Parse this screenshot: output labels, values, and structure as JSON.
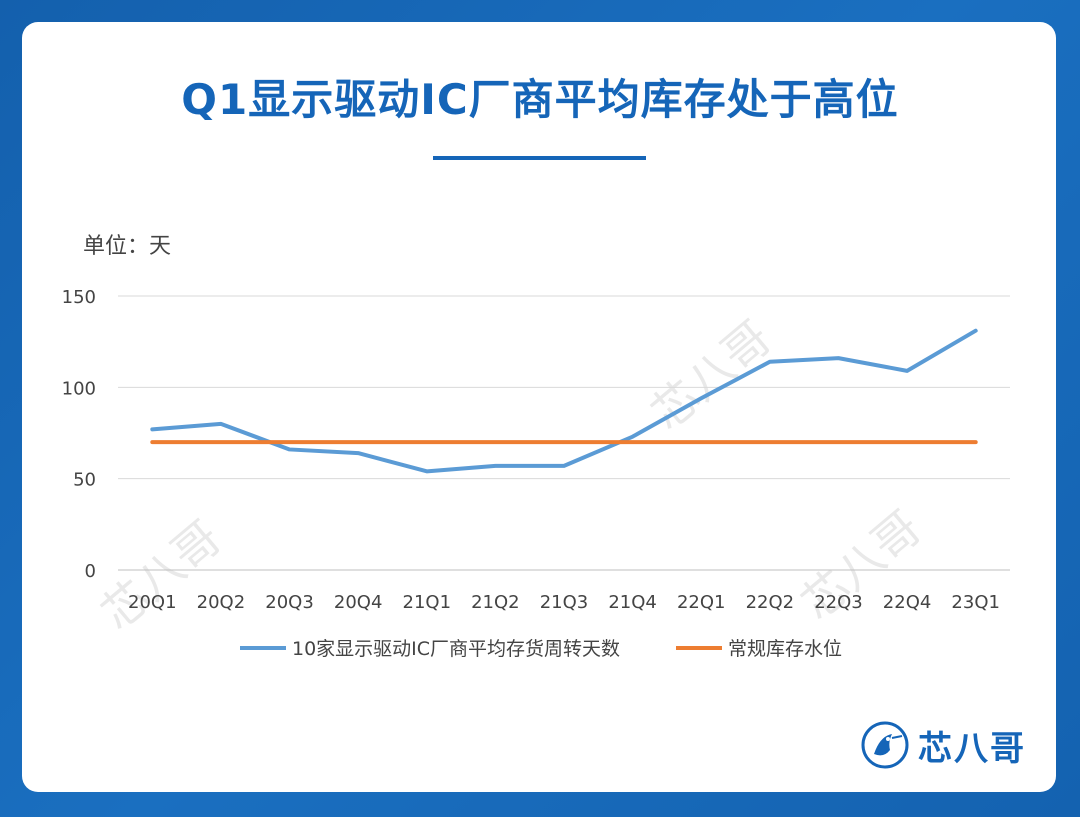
{
  "page": {
    "title": "Q1显示驱动IC厂商平均库存处于高位",
    "unit_label": "单位：天"
  },
  "brand": {
    "name": "芯八哥",
    "color": "#1565b8"
  },
  "chart_data": {
    "type": "line",
    "categories": [
      "20Q1",
      "20Q2",
      "20Q3",
      "20Q4",
      "21Q1",
      "21Q2",
      "21Q3",
      "21Q4",
      "22Q1",
      "22Q2",
      "22Q3",
      "22Q4",
      "23Q1"
    ],
    "series": [
      {
        "name": "10家显示驱动IC厂商平均存货周转天数",
        "color": "#5b9bd5",
        "values": [
          77,
          80,
          66,
          64,
          54,
          57,
          57,
          73,
          94,
          114,
          116,
          109,
          131
        ]
      },
      {
        "name": "常规库存水位",
        "color": "#ed7d31",
        "values": [
          70,
          70,
          70,
          70,
          70,
          70,
          70,
          70,
          70,
          70,
          70,
          70,
          70
        ]
      }
    ],
    "ylim": [
      0,
      150
    ],
    "yticks": [
      0,
      50,
      100,
      150
    ],
    "grid": true,
    "legend": "bottom"
  }
}
